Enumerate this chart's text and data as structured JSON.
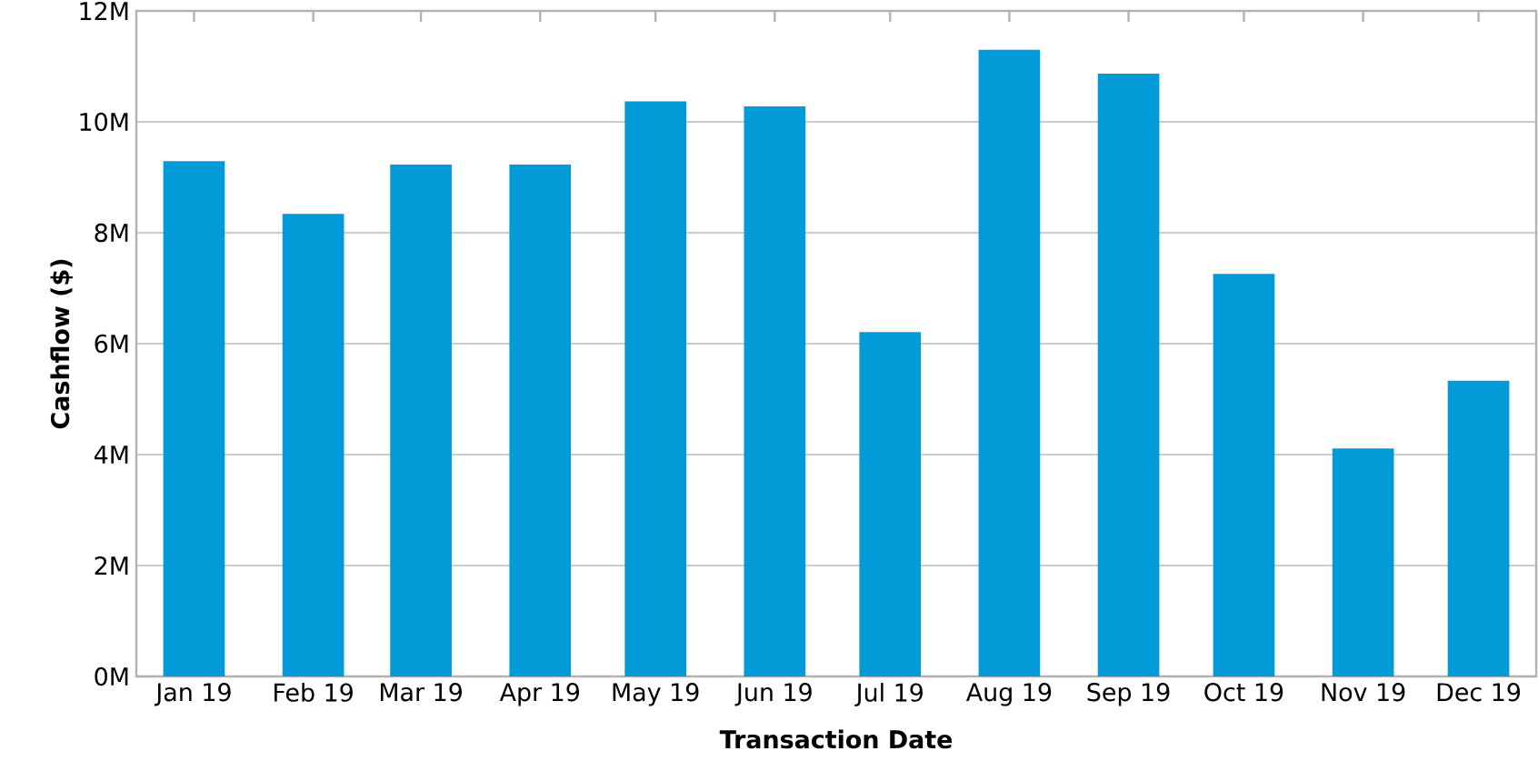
{
  "chart_data": {
    "type": "bar",
    "xlabel": "Transaction Date",
    "ylabel": "Cashflow ($)",
    "x": [
      "2019-01-01",
      "2019-02-01",
      "2019-03-01",
      "2019-04-01",
      "2019-05-01",
      "2019-06-01",
      "2019-07-01",
      "2019-08-01",
      "2019-09-01",
      "2019-10-01",
      "2019-11-01",
      "2019-12-01"
    ],
    "values": [
      9.29,
      8.34,
      9.23,
      9.23,
      10.37,
      10.28,
      6.21,
      11.3,
      10.87,
      7.26,
      4.11,
      5.33
    ],
    "color": "#039bd7",
    "xlim": [
      "2018-12-17",
      "2019-12-16"
    ],
    "xticks": [
      {
        "value": "2019-01-01",
        "label": "Jan 19"
      },
      {
        "value": "2019-02-01",
        "label": "Feb 19"
      },
      {
        "value": "2019-03-01",
        "label": "Mar 19"
      },
      {
        "value": "2019-04-01",
        "label": "Apr 19"
      },
      {
        "value": "2019-05-01",
        "label": "May 19"
      },
      {
        "value": "2019-06-01",
        "label": "Jun 19"
      },
      {
        "value": "2019-07-01",
        "label": "Jul 19"
      },
      {
        "value": "2019-08-01",
        "label": "Aug 19"
      },
      {
        "value": "2019-09-01",
        "label": "Sep 19"
      },
      {
        "value": "2019-10-01",
        "label": "Oct 19"
      },
      {
        "value": "2019-11-01",
        "label": "Nov 19"
      },
      {
        "value": "2019-12-01",
        "label": "Dec 19"
      }
    ],
    "ylim": [
      0,
      12
    ],
    "yticks": [
      {
        "value": 0,
        "label": "0M"
      },
      {
        "value": 2,
        "label": "2M"
      },
      {
        "value": 4,
        "label": "4M"
      },
      {
        "value": 6,
        "label": "6M"
      },
      {
        "value": 8,
        "label": "8M"
      },
      {
        "value": 10,
        "label": "10M"
      },
      {
        "value": 12,
        "label": "12M"
      }
    ],
    "grid": "y"
  }
}
